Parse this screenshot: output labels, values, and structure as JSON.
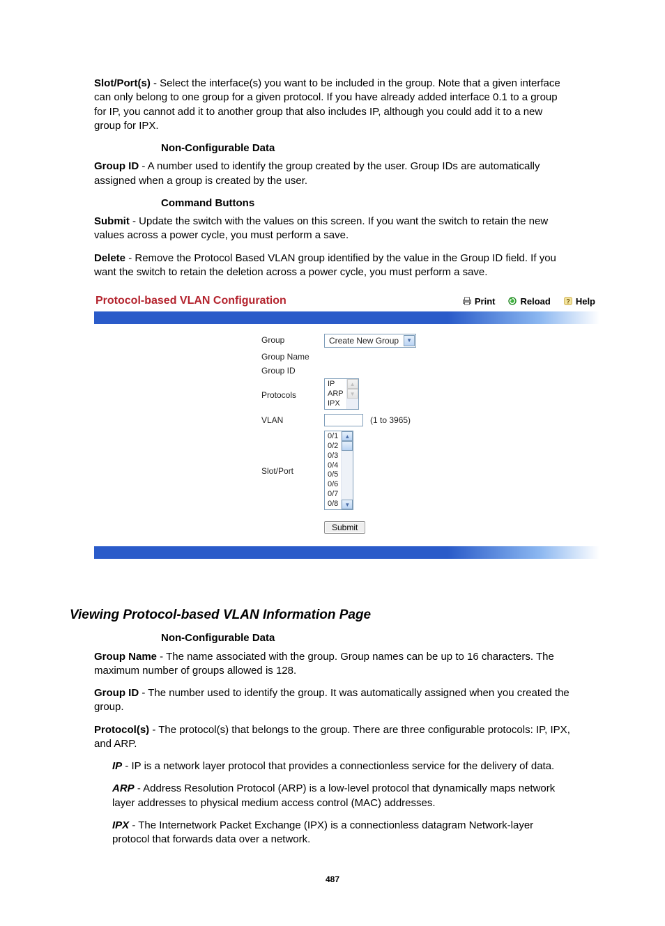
{
  "doc": {
    "slot_ports": {
      "term": "Slot/Port(s)",
      "text": " - Select the interface(s) you want to be included in the group. Note that a given interface can only belong to one group for a given protocol. If you have already added interface 0.1 to a group for IP, you cannot add it to another group that also includes IP, although you could add it to a new group for IPX."
    },
    "nonconfig_head": "Non-Configurable Data",
    "group_id": {
      "term": "Group ID",
      "text": " - A number used to identify the group created by the user. Group IDs are automatically assigned when a group is created by the user."
    },
    "cmd_head": "Command Buttons",
    "submit": {
      "term": "Submit",
      "text": " - Update the switch with the values on this screen. If you want the switch to retain the new values across a power cycle, you must perform a save."
    },
    "delete": {
      "term": "Delete",
      "text": " - Remove the Protocol Based VLAN group identified by the value in the Group ID field. If you want the switch to retain the deletion across a power cycle, you must perform a save."
    }
  },
  "panel": {
    "title": "Protocol-based VLAN Configuration",
    "actions": {
      "print": "Print",
      "reload": "Reload",
      "help": "Help"
    },
    "labels": {
      "group": "Group",
      "group_name": "Group Name",
      "group_id": "Group ID",
      "protocols": "Protocols",
      "vlan": "VLAN",
      "slot_port": "Slot/Port"
    },
    "group_select": "Create New Group",
    "protocols": [
      "IP",
      "ARP",
      "IPX"
    ],
    "vlan_range": "(1 to 3965)",
    "slot_ports": [
      "0/1",
      "0/2",
      "0/3",
      "0/4",
      "0/5",
      "0/6",
      "0/7",
      "0/8"
    ],
    "submit_label": "Submit"
  },
  "section2": {
    "title": "Viewing Protocol-based VLAN Information Page",
    "nonconfig_head": "Non-Configurable Data",
    "group_name": {
      "term": "Group Name",
      "text": " - The name associated with the group. Group names can be up to 16 characters. The maximum number of groups allowed is 128."
    },
    "group_id": {
      "term": "Group ID",
      "text": " - The number used to identify the group. It was automatically assigned when you created the group."
    },
    "protocols": {
      "term": "Protocol(s)",
      "text": " - The protocol(s) that belongs to the group. There are three configurable protocols: IP, IPX, and ARP."
    },
    "ip": {
      "term": "IP",
      "text": " - IP is a network layer protocol that provides a connectionless service for the delivery of data."
    },
    "arp": {
      "term": "ARP",
      "text": " - Address Resolution Protocol (ARP) is a low-level protocol that dynamically maps network layer addresses to physical medium access control (MAC) addresses."
    },
    "ipx": {
      "term": "IPX",
      "text": " - The Internetwork Packet Exchange (IPX) is a connectionless datagram Network-layer protocol that forwards data over a network."
    }
  },
  "page_number": "487"
}
